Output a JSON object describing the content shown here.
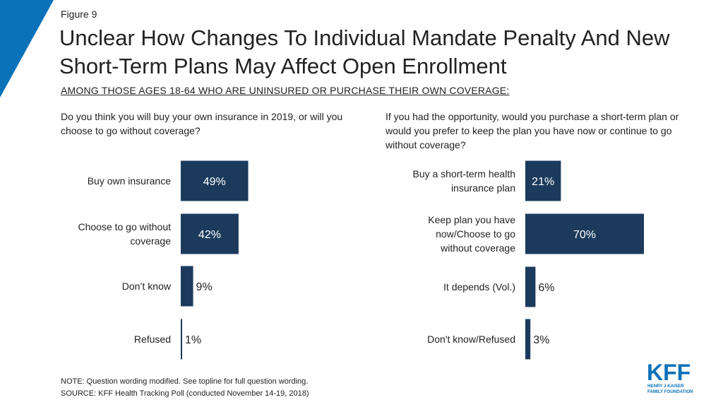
{
  "figure_label": "Figure 9",
  "title": "Unclear How Changes To Individual Mandate Penalty And New Short-Term Plans May Affect Open Enrollment",
  "subtitle": "AMONG THOSE AGES 18-64 WHO ARE UNINSURED  OR PURCHASE  THEIR OWN COVERAGE:",
  "colors": {
    "bar": "#1c3b5c",
    "accent": "#0a72b9"
  },
  "chart_data": [
    {
      "type": "bar",
      "orientation": "horizontal",
      "title": "Do you think you will buy your own insurance in 2019, or will you choose to go without coverage?",
      "categories": [
        "Buy own insurance",
        "Choose to go without coverage",
        "Don’t know",
        "Refused"
      ],
      "values": [
        49,
        42,
        9,
        1
      ],
      "labels": [
        "49%",
        "42%",
        "9%",
        "1%"
      ],
      "unit": "%",
      "xlim": [
        0,
        100
      ]
    },
    {
      "type": "bar",
      "orientation": "horizontal",
      "title": "If you had the opportunity,  would you purchase a short-term plan or would you prefer to keep the plan you have now or continue to go without coverage?",
      "categories": [
        "Buy a short-term health insurance plan",
        "Keep plan you have now/Choose to go without coverage",
        "It depends (Vol.)",
        "Don't know/Refused"
      ],
      "values": [
        21,
        70,
        6,
        3
      ],
      "labels": [
        "21%",
        "70%",
        "6%",
        "3%"
      ],
      "unit": "%",
      "xlim": [
        0,
        100
      ]
    }
  ],
  "note": "NOTE: Question wording modified. See topline for full question wording.",
  "source": "SOURCE: KFF Health Tracking Poll (conducted November 14-19, 2018)",
  "logo": {
    "text": "KFF",
    "subtext": "HENRY J KAISER FAMILY FOUNDATION"
  }
}
